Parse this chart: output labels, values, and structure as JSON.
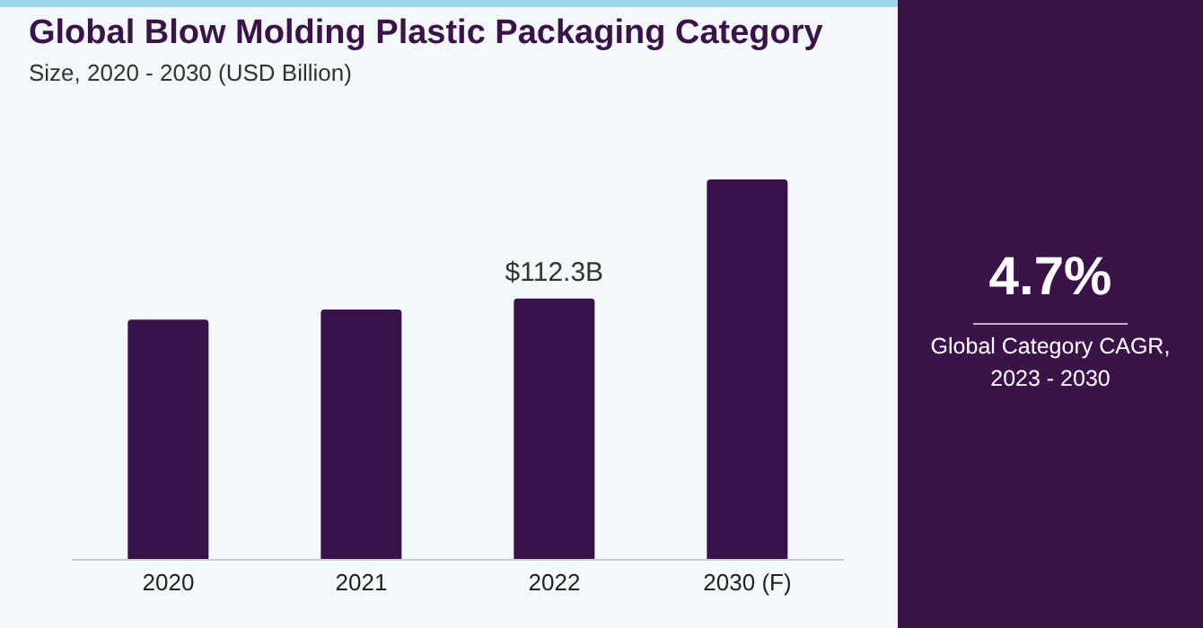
{
  "chart_data": {
    "type": "bar",
    "title": "Global Blow Molding Plastic Packaging Category",
    "subtitle": "Size, 2020 - 2030 (USD Billion)",
    "categories": [
      "2020",
      "2021",
      "2022",
      "2030 (F)"
    ],
    "values": [
      103.2,
      107.6,
      112.3,
      163.5
    ],
    "value_labels": [
      null,
      null,
      "$112.3B",
      null
    ],
    "color": "#38124a",
    "annotations": [
      "4.7%",
      "Global Category CAGR, 2023 - 2030"
    ]
  }
}
